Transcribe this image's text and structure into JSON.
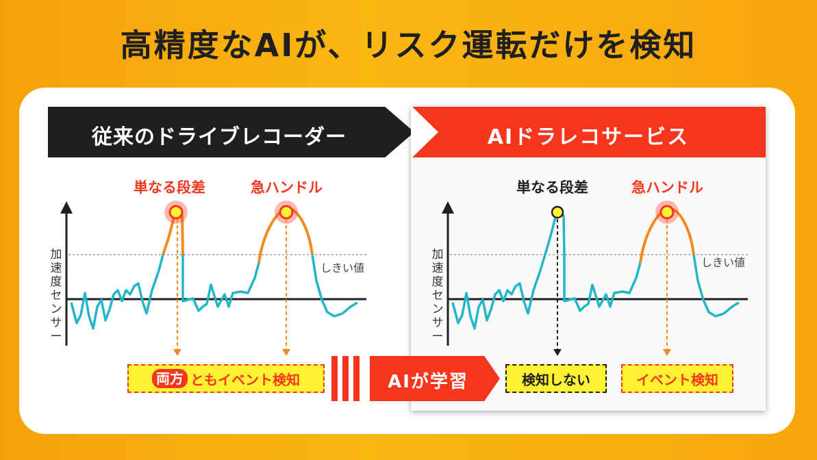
{
  "headline": "高精度なAIが、リスク運転だけを検知",
  "left_panel": {
    "title": "従来のドライブレコーダー",
    "marker1": "単なる段差",
    "marker2": "急ハンドル",
    "y_label": [
      "加",
      "速",
      "度",
      "セ",
      "ン",
      "サ",
      "ー"
    ],
    "threshold_label": "しきい値",
    "result_pill": "両方",
    "result_text": "ともイベント検知"
  },
  "middle": {
    "label": "AIが学習"
  },
  "right_panel": {
    "title": "AIドラレコサービス",
    "marker1": "単なる段差",
    "marker2": "急ハンドル",
    "y_label": [
      "加",
      "速",
      "度",
      "セ",
      "ン",
      "サ",
      "ー"
    ],
    "threshold_label": "しきい値",
    "result1": "検知しない",
    "result2": "イベント検知"
  },
  "colors": {
    "background": "#f9b712",
    "accent_red": "#f5361c",
    "wave_teal": "#23b5c8",
    "peak_orange": "#f28a1d",
    "highlight_yellow": "#fff233",
    "dark": "#1f1f1f"
  }
}
